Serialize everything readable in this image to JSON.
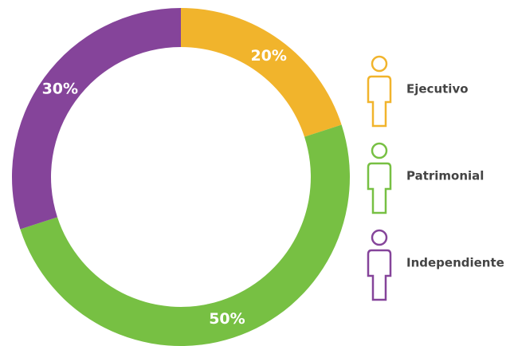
{
  "chart_data": {
    "type": "donut",
    "categories": [
      "Ejecutivo",
      "Patrimonial",
      "Independiente"
    ],
    "values": [
      20,
      50,
      30
    ],
    "value_labels": [
      "20%",
      "50%",
      "30%"
    ],
    "colors": [
      "#f1b42c",
      "#77c043",
      "#85449a"
    ],
    "legend": "right"
  }
}
